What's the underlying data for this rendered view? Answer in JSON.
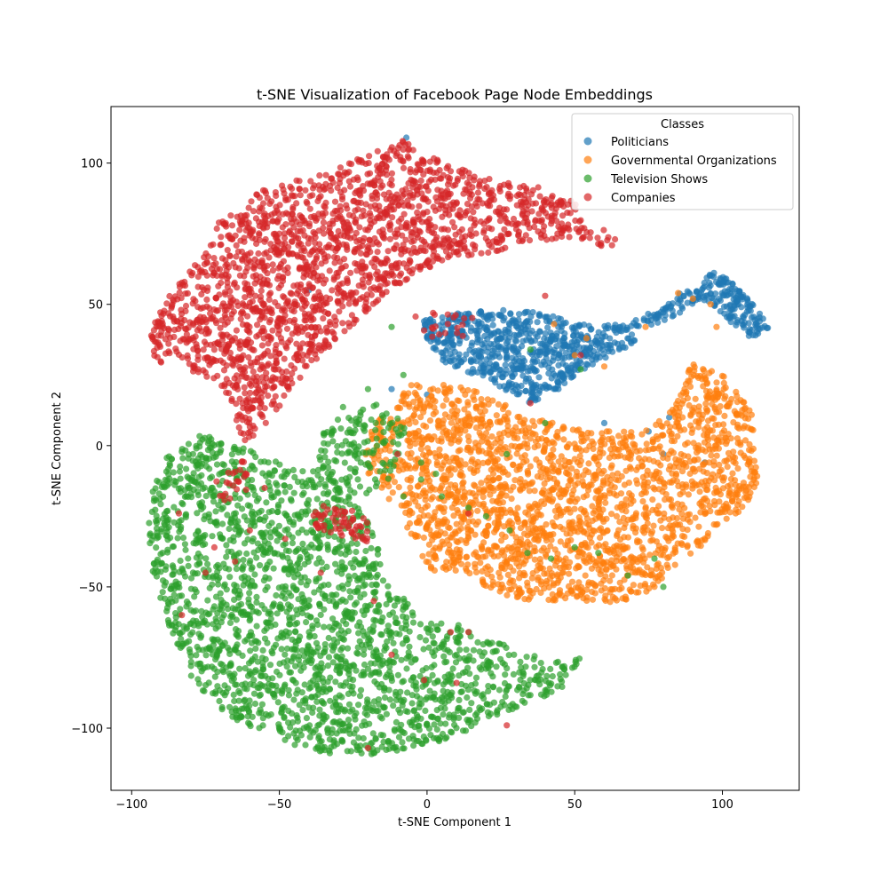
{
  "chart_data": {
    "type": "scatter",
    "title": "t-SNE Visualization of Facebook Page Node Embeddings",
    "xlabel": "t-SNE Component 1",
    "ylabel": "t-SNE Component 2",
    "xlim": [
      -107,
      126
    ],
    "ylim": [
      -122,
      120
    ],
    "xticks": [
      -100,
      -50,
      0,
      50,
      100
    ],
    "yticks": [
      -100,
      -50,
      0,
      50,
      100
    ],
    "xtick_labels": [
      "−100",
      "−50",
      "0",
      "50",
      "100"
    ],
    "ytick_labels": [
      "−100",
      "−50",
      "0",
      "50",
      "100"
    ],
    "grid": false,
    "legend": {
      "title": "Classes",
      "placement": "top-right"
    },
    "series": [
      {
        "name": "Politicians",
        "color": "#1f77b4",
        "regions": [
          {
            "poly": [
              [
                -2,
                44
              ],
              [
                10,
                47
              ],
              [
                25,
                48
              ],
              [
                40,
                47
              ],
              [
                50,
                44
              ],
              [
                58,
                42
              ],
              [
                68,
                44
              ],
              [
                80,
                50
              ],
              [
                90,
                57
              ],
              [
                98,
                62
              ],
              [
                105,
                56
              ],
              [
                112,
                48
              ],
              [
                116,
                42
              ],
              [
                110,
                38
              ],
              [
                102,
                44
              ],
              [
                93,
                52
              ],
              [
                84,
                46
              ],
              [
                74,
                40
              ],
              [
                64,
                32
              ],
              [
                55,
                28
              ],
              [
                45,
                20
              ],
              [
                35,
                15
              ],
              [
                24,
                21
              ],
              [
                14,
                26
              ],
              [
                5,
                30
              ],
              [
                0,
                37
              ]
            ],
            "n": 900
          }
        ],
        "points": [
          [
            -7,
            109
          ],
          [
            -40,
            55
          ],
          [
            -1,
            44
          ],
          [
            -12,
            20
          ],
          [
            0,
            18
          ],
          [
            60,
            8
          ],
          [
            75,
            5
          ],
          [
            82,
            10
          ],
          [
            94,
            -6
          ],
          [
            80,
            -3
          ]
        ]
      },
      {
        "name": "Governmental Organizations",
        "color": "#ff7f0e",
        "regions": [
          {
            "poly": [
              [
                -18,
                8
              ],
              [
                -5,
                22
              ],
              [
                15,
                21
              ],
              [
                35,
                10
              ],
              [
                55,
                5
              ],
              [
                75,
                6
              ],
              [
                82,
                12
              ],
              [
                90,
                30
              ],
              [
                102,
                24
              ],
              [
                110,
                12
              ],
              [
                112,
                -12
              ],
              [
                108,
                -22
              ],
              [
                98,
                -30
              ],
              [
                94,
                -36
              ],
              [
                86,
                -40
              ],
              [
                78,
                -50
              ],
              [
                66,
                -56
              ],
              [
                50,
                -55
              ],
              [
                34,
                -55
              ],
              [
                22,
                -52
              ],
              [
                12,
                -45
              ],
              [
                0,
                -44
              ],
              [
                -6,
                -30
              ],
              [
                -14,
                -18
              ],
              [
                -22,
                -8
              ],
              [
                -20,
                2
              ]
            ],
            "n": 2200
          }
        ],
        "points": [
          [
            43,
            43
          ],
          [
            50,
            32
          ],
          [
            54,
            38
          ],
          [
            60,
            28
          ],
          [
            74,
            42
          ],
          [
            85,
            54
          ],
          [
            90,
            52
          ],
          [
            96,
            50
          ],
          [
            98,
            42
          ],
          [
            31,
            5
          ],
          [
            18,
            12
          ],
          [
            -18,
            -3
          ]
        ]
      },
      {
        "name": "Television Shows",
        "color": "#2ca02c",
        "regions": [
          {
            "poly": [
              [
                -95,
                -22
              ],
              [
                -88,
                -3
              ],
              [
                -76,
                4
              ],
              [
                -64,
                0
              ],
              [
                -50,
                -6
              ],
              [
                -34,
                -12
              ],
              [
                -24,
                -20
              ],
              [
                -18,
                -30
              ],
              [
                -14,
                -46
              ],
              [
                -8,
                -52
              ],
              [
                -4,
                -60
              ],
              [
                8,
                -62
              ],
              [
                18,
                -68
              ],
              [
                32,
                -72
              ],
              [
                42,
                -77
              ],
              [
                52,
                -75
              ],
              [
                46,
                -86
              ],
              [
                32,
                -92
              ],
              [
                16,
                -100
              ],
              [
                4,
                -105
              ],
              [
                -10,
                -108
              ],
              [
                -24,
                -110
              ],
              [
                -40,
                -108
              ],
              [
                -54,
                -102
              ],
              [
                -68,
                -96
              ],
              [
                -80,
                -82
              ],
              [
                -88,
                -62
              ],
              [
                -93,
                -44
              ]
            ],
            "n": 2200
          },
          {
            "poly": [
              [
                -40,
                -4
              ],
              [
                -30,
                14
              ],
              [
                -20,
                16
              ],
              [
                -10,
                12
              ],
              [
                -6,
                4
              ],
              [
                -10,
                -10
              ],
              [
                -20,
                -18
              ],
              [
                -32,
                -20
              ],
              [
                -40,
                -14
              ]
            ],
            "n": 160
          }
        ],
        "points": [
          [
            -12,
            42
          ],
          [
            -20,
            20
          ],
          [
            -8,
            25
          ],
          [
            -2,
            -12
          ],
          [
            5,
            -18
          ],
          [
            14,
            -22
          ],
          [
            20,
            -25
          ],
          [
            28,
            -30
          ],
          [
            34,
            -38
          ],
          [
            42,
            -40
          ],
          [
            50,
            -36
          ],
          [
            58,
            -38
          ],
          [
            68,
            -46
          ],
          [
            77,
            -40
          ],
          [
            80,
            -50
          ],
          [
            -18,
            14
          ],
          [
            52,
            27
          ],
          [
            35,
            34
          ],
          [
            40,
            8
          ],
          [
            27,
            -3
          ],
          [
            -8,
            -18
          ],
          [
            -2,
            -6
          ],
          [
            3,
            -10
          ]
        ]
      },
      {
        "name": "Companies",
        "color": "#d62728",
        "regions": [
          {
            "poly": [
              [
                -70,
                80
              ],
              [
                -54,
                92
              ],
              [
                -38,
                95
              ],
              [
                -22,
                102
              ],
              [
                -8,
                108
              ],
              [
                6,
                100
              ],
              [
                22,
                94
              ],
              [
                38,
                92
              ],
              [
                50,
                86
              ],
              [
                58,
                78
              ],
              [
                66,
                72
              ],
              [
                60,
                70
              ],
              [
                50,
                74
              ],
              [
                36,
                72
              ],
              [
                20,
                68
              ],
              [
                6,
                66
              ],
              [
                -6,
                58
              ],
              [
                -18,
                50
              ],
              [
                -28,
                40
              ],
              [
                -38,
                30
              ],
              [
                -46,
                20
              ],
              [
                -54,
                8
              ],
              [
                -62,
                0
              ],
              [
                -66,
                14
              ],
              [
                -72,
                22
              ],
              [
                -80,
                26
              ],
              [
                -92,
                30
              ],
              [
                -94,
                40
              ],
              [
                -88,
                52
              ],
              [
                -80,
                62
              ],
              [
                -74,
                70
              ]
            ],
            "n": 2000
          },
          {
            "poly": [
              [
                -38,
                -20
              ],
              [
                -28,
                -22
              ],
              [
                -18,
                -26
              ],
              [
                -20,
                -34
              ],
              [
                -30,
                -32
              ],
              [
                -40,
                -28
              ]
            ],
            "n": 60
          },
          {
            "poly": [
              [
                -72,
                -12
              ],
              [
                -62,
                -4
              ],
              [
                -56,
                -8
              ],
              [
                -62,
                -18
              ],
              [
                -70,
                -20
              ]
            ],
            "n": 25
          },
          {
            "poly": [
              [
                -4,
                46
              ],
              [
                8,
                48
              ],
              [
                16,
                46
              ],
              [
                12,
                38
              ],
              [
                0,
                36
              ],
              [
                -6,
                40
              ]
            ],
            "n": 20
          }
        ],
        "points": [
          [
            -83,
            -60
          ],
          [
            -75,
            -45
          ],
          [
            -65,
            -41
          ],
          [
            -48,
            -33
          ],
          [
            -36,
            -45
          ],
          [
            -18,
            -55
          ],
          [
            -12,
            -74
          ],
          [
            -1,
            -83
          ],
          [
            8,
            -66
          ],
          [
            10,
            -84
          ],
          [
            14,
            -66
          ],
          [
            27,
            -99
          ],
          [
            -20,
            -107
          ],
          [
            -60,
            -30
          ],
          [
            -72,
            -36
          ],
          [
            -84,
            -24
          ],
          [
            -10,
            -3
          ],
          [
            35,
            15
          ],
          [
            40,
            53
          ],
          [
            -55,
            -15
          ],
          [
            14,
            -24
          ],
          [
            52,
            32
          ]
        ]
      }
    ]
  }
}
